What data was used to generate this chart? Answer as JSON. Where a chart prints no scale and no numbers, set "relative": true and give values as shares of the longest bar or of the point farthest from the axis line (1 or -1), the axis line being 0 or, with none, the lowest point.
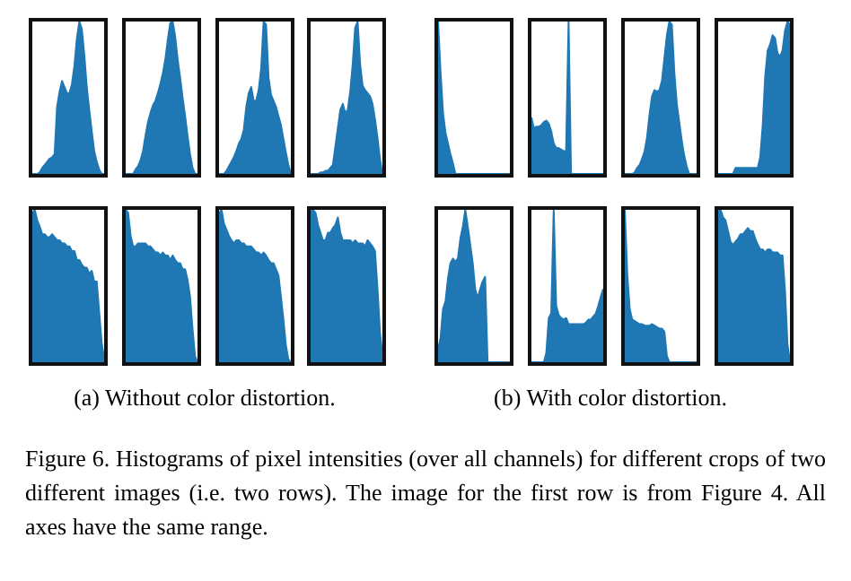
{
  "chart_data": [
    {
      "type": "area",
      "relative": true,
      "color": "#1f77b4",
      "categories": [
        null,
        null,
        null,
        null,
        null,
        null,
        null,
        null,
        null,
        null,
        null,
        null,
        null,
        null,
        null,
        null,
        null,
        null,
        null,
        null,
        null,
        null,
        null,
        null,
        null,
        null,
        null,
        null,
        null,
        null
      ],
      "values": [
        0,
        0,
        0,
        0.01,
        0.04,
        0.06,
        0.08,
        0.1,
        0.11,
        0.13,
        0.44,
        0.54,
        0.61,
        0.57,
        0.53,
        0.53,
        0.59,
        0.71,
        0.89,
        1,
        0.95,
        0.78,
        0.57,
        0.42,
        0.28,
        0.15,
        0.08,
        0.03,
        0,
        0
      ]
    },
    {
      "type": "area",
      "relative": true,
      "color": "#1f77b4",
      "categories": [
        null,
        null,
        null,
        null,
        null,
        null,
        null,
        null,
        null,
        null,
        null,
        null,
        null,
        null,
        null,
        null,
        null,
        null,
        null,
        null,
        null,
        null,
        null,
        null,
        null,
        null,
        null,
        null,
        null,
        null
      ],
      "values": [
        0,
        0,
        0,
        0,
        0.03,
        0.05,
        0.09,
        0.15,
        0.25,
        0.34,
        0.4,
        0.45,
        0.48,
        0.53,
        0.59,
        0.66,
        0.75,
        0.88,
        0.99,
        1,
        0.9,
        0.75,
        0.63,
        0.5,
        0.38,
        0.25,
        0.13,
        0.04,
        0,
        0
      ]
    },
    {
      "type": "area",
      "relative": true,
      "color": "#1f77b4",
      "categories": [
        null,
        null,
        null,
        null,
        null,
        null,
        null,
        null,
        null,
        null,
        null,
        null,
        null,
        null,
        null,
        null,
        null,
        null,
        null,
        null,
        null,
        null,
        null,
        null,
        null,
        null,
        null,
        null,
        null,
        null
      ],
      "values": [
        0,
        0,
        0,
        0.02,
        0.05,
        0.08,
        0.11,
        0.15,
        0.2,
        0.23,
        0.29,
        0.44,
        0.53,
        0.57,
        0.48,
        0.48,
        0.55,
        0.69,
        1,
        0.98,
        0.63,
        0.52,
        0.48,
        0.44,
        0.38,
        0.32,
        0.23,
        0.14,
        0.06,
        0
      ]
    },
    {
      "type": "area",
      "relative": true,
      "color": "#1f77b4",
      "categories": [
        null,
        null,
        null,
        null,
        null,
        null,
        null,
        null,
        null,
        null,
        null,
        null,
        null,
        null,
        null,
        null,
        null,
        null,
        null,
        null,
        null,
        null,
        null,
        null,
        null,
        null,
        null,
        null,
        null,
        null
      ],
      "values": [
        0,
        0,
        0,
        0,
        0.01,
        0.01,
        0.02,
        0.02,
        0.04,
        0.06,
        0.18,
        0.3,
        0.42,
        0.46,
        0.4,
        0.42,
        0.54,
        0.72,
        0.96,
        1,
        0.72,
        0.58,
        0.55,
        0.53,
        0.51,
        0.46,
        0.36,
        0.24,
        0.1,
        0
      ]
    },
    {
      "type": "area",
      "relative": true,
      "color": "#1f77b4",
      "categories": [
        null,
        null,
        null,
        null,
        null,
        null,
        null,
        null,
        null,
        null,
        null,
        null,
        null,
        null,
        null,
        null,
        null,
        null,
        null,
        null,
        null,
        null,
        null,
        null,
        null,
        null,
        null,
        null,
        null,
        null
      ],
      "values": [
        1,
        0.67,
        0.4,
        0.27,
        0.2,
        0.13,
        0.07,
        0,
        0,
        0,
        0,
        0,
        0,
        0,
        0,
        0,
        0,
        0,
        0,
        0,
        0,
        0,
        0,
        0,
        0,
        0,
        0,
        0,
        0,
        0
      ]
    },
    {
      "type": "area",
      "relative": true,
      "color": "#1f77b4",
      "categories": [
        null,
        null,
        null,
        null,
        null,
        null,
        null,
        null,
        null,
        null,
        null,
        null,
        null,
        null,
        null,
        null,
        null,
        null,
        null,
        null,
        null,
        null,
        null,
        null,
        null,
        null,
        null,
        null,
        null,
        null
      ],
      "values": [
        0.37,
        0.3,
        0.31,
        0.31,
        0.32,
        0.34,
        0.35,
        0.33,
        0.28,
        0.2,
        0.17,
        0.17,
        0.16,
        0.15,
        0.15,
        1,
        0,
        0,
        0,
        0,
        0,
        0,
        0,
        0,
        0,
        0,
        0,
        0,
        0,
        0
      ]
    },
    {
      "type": "area",
      "relative": true,
      "color": "#1f77b4",
      "categories": [
        null,
        null,
        null,
        null,
        null,
        null,
        null,
        null,
        null,
        null,
        null,
        null,
        null,
        null,
        null,
        null,
        null,
        null,
        null,
        null,
        null,
        null,
        null,
        null,
        null,
        null,
        null,
        null,
        null,
        null
      ],
      "values": [
        0,
        0,
        0,
        0,
        0.01,
        0.04,
        0.06,
        0.1,
        0.15,
        0.24,
        0.39,
        0.51,
        0.55,
        0.54,
        0.55,
        0.61,
        0.76,
        0.91,
        1,
        0.98,
        0.67,
        0.46,
        0.34,
        0.22,
        0.12,
        0.05,
        0,
        0,
        0,
        0
      ]
    },
    {
      "type": "area",
      "relative": true,
      "color": "#1f77b4",
      "categories": [
        null,
        null,
        null,
        null,
        null,
        null,
        null,
        null,
        null,
        null,
        null,
        null,
        null,
        null,
        null,
        null,
        null,
        null,
        null,
        null,
        null,
        null,
        null,
        null,
        null,
        null,
        null,
        null,
        null,
        null
      ],
      "values": [
        0,
        0,
        0,
        0,
        0,
        0,
        0,
        0.04,
        0.04,
        0.04,
        0.04,
        0.04,
        0.04,
        0.04,
        0.04,
        0.04,
        0.04,
        0.11,
        0.32,
        0.64,
        0.81,
        0.85,
        0.91,
        0.89,
        0.79,
        0.77,
        0.81,
        0.94,
        1,
        0.98
      ]
    },
    {
      "type": "area",
      "relative": true,
      "color": "#1f77b4",
      "categories": [
        null,
        null,
        null,
        null,
        null,
        null,
        null,
        null,
        null,
        null,
        null,
        null,
        null,
        null,
        null,
        null,
        null,
        null,
        null,
        null,
        null,
        null,
        null,
        null,
        null,
        null,
        null,
        null,
        null,
        null
      ],
      "values": [
        0.98,
        1,
        0.93,
        0.89,
        0.84,
        0.84,
        0.82,
        0.82,
        0.84,
        0.82,
        0.8,
        0.8,
        0.78,
        0.78,
        0.76,
        0.76,
        0.73,
        0.73,
        0.67,
        0.67,
        0.64,
        0.62,
        0.62,
        0.58,
        0.6,
        0.53,
        0.53,
        0.33,
        0.13,
        0.02
      ],
      "annotations": [
        "(a) Without color distortion.",
        "Figure 6. Histograms of pixel intensities (over all channels) for different crops of two different images (i.e. two rows). The image for the first row is from Figure 4. All axes have the same range."
      ]
    },
    {
      "type": "area",
      "relative": true,
      "color": "#1f77b4",
      "categories": [
        null,
        null,
        null,
        null,
        null,
        null,
        null,
        null,
        null,
        null,
        null,
        null,
        null,
        null,
        null,
        null,
        null,
        null,
        null,
        null,
        null,
        null,
        null,
        null,
        null,
        null,
        null,
        null,
        null,
        null
      ],
      "values": [
        1,
        0.98,
        0.83,
        0.76,
        0.76,
        0.78,
        0.78,
        0.78,
        0.78,
        0.76,
        0.76,
        0.74,
        0.72,
        0.72,
        0.7,
        0.72,
        0.7,
        0.7,
        0.67,
        0.7,
        0.67,
        0.65,
        0.65,
        0.61,
        0.61,
        0.54,
        0.43,
        0.22,
        0.04,
        0
      ]
    },
    {
      "type": "area",
      "relative": true,
      "color": "#1f77b4",
      "categories": [
        null,
        null,
        null,
        null,
        null,
        null,
        null,
        null,
        null,
        null,
        null,
        null,
        null,
        null,
        null,
        null,
        null,
        null,
        null,
        null,
        null,
        null,
        null,
        null,
        null,
        null,
        null,
        null,
        null,
        null
      ],
      "values": [
        0.98,
        1,
        0.91,
        0.87,
        0.83,
        0.8,
        0.78,
        0.8,
        0.8,
        0.78,
        0.78,
        0.76,
        0.76,
        0.76,
        0.74,
        0.72,
        0.72,
        0.7,
        0.72,
        0.7,
        0.67,
        0.65,
        0.65,
        0.61,
        0.57,
        0.43,
        0.28,
        0.11,
        0.02,
        0
      ]
    },
    {
      "type": "area",
      "relative": true,
      "color": "#1f77b4",
      "categories": [
        null,
        null,
        null,
        null,
        null,
        null,
        null,
        null,
        null,
        null,
        null,
        null,
        null,
        null,
        null,
        null,
        null,
        null,
        null,
        null,
        null,
        null,
        null,
        null,
        null,
        null,
        null,
        null,
        null,
        null
      ],
      "values": [
        1,
        1,
        0.98,
        0.9,
        0.85,
        0.8,
        0.8,
        0.85,
        0.85,
        0.88,
        0.9,
        0.95,
        0.85,
        0.8,
        0.8,
        0.8,
        0.8,
        0.78,
        0.8,
        0.78,
        0.78,
        0.78,
        0.76,
        0.8,
        0.78,
        0.76,
        0.73,
        0.49,
        0.2,
        0.05
      ]
    },
    {
      "type": "area",
      "relative": true,
      "color": "#1f77b4",
      "categories": [
        null,
        null,
        null,
        null,
        null,
        null,
        null,
        null,
        null,
        null,
        null,
        null,
        null,
        null,
        null,
        null,
        null,
        null,
        null,
        null,
        null,
        null,
        null,
        null,
        null,
        null,
        null,
        null,
        null,
        null
      ],
      "values": [
        0.08,
        0.16,
        0.35,
        0.4,
        0.55,
        0.65,
        0.68,
        0.66,
        0.68,
        0.81,
        0.89,
        1,
        0.89,
        0.77,
        0.65,
        0.48,
        0.42,
        0.48,
        0.53,
        0.56,
        0,
        0,
        0,
        0,
        0,
        0,
        0,
        0,
        0,
        0
      ],
      "annotations": [
        "(b) With color distortion."
      ]
    },
    {
      "type": "area",
      "relative": true,
      "color": "#1f77b4",
      "categories": [
        null,
        null,
        null,
        null,
        null,
        null,
        null,
        null,
        null,
        null,
        null,
        null,
        null,
        null,
        null,
        null,
        null,
        null,
        null,
        null,
        null,
        null,
        null,
        null,
        null,
        null,
        null,
        null,
        null,
        null
      ],
      "values": [
        0,
        0,
        0,
        0,
        0,
        0,
        0.06,
        0.29,
        0.32,
        1,
        0.37,
        0.31,
        0.29,
        0.28,
        0.29,
        0.25,
        0.25,
        0.25,
        0.25,
        0.25,
        0.25,
        0.25,
        0.26,
        0.28,
        0.28,
        0.3,
        0.32,
        0.37,
        0.43,
        0.48
      ]
    },
    {
      "type": "area",
      "relative": true,
      "color": "#1f77b4",
      "categories": [
        null,
        null,
        null,
        null,
        null,
        null,
        null,
        null,
        null,
        null,
        null,
        null,
        null,
        null,
        null,
        null,
        null,
        null,
        null,
        null,
        null,
        null,
        null,
        null,
        null,
        null,
        null,
        null,
        null,
        null
      ],
      "values": [
        1,
        0.58,
        0.35,
        0.28,
        0.27,
        0.26,
        0.25,
        0.25,
        0.24,
        0.24,
        0.24,
        0.25,
        0.24,
        0.23,
        0.22,
        0.22,
        0.2,
        0.04,
        0,
        0,
        0,
        0,
        0,
        0,
        0,
        0,
        0,
        0,
        0,
        0
      ]
    },
    {
      "type": "area",
      "relative": true,
      "color": "#1f77b4",
      "categories": [
        null,
        null,
        null,
        null,
        null,
        null,
        null,
        null,
        null,
        null,
        null,
        null,
        null,
        null,
        null,
        null,
        null,
        null,
        null,
        null,
        null,
        null,
        null,
        null,
        null,
        null,
        null,
        null,
        null,
        null
      ],
      "values": [
        1,
        1,
        0.95,
        0.93,
        0.86,
        0.79,
        0.77,
        0.79,
        0.81,
        0.84,
        0.84,
        0.86,
        0.88,
        0.86,
        0.86,
        0.81,
        0.77,
        0.74,
        0.74,
        0.72,
        0.74,
        0.74,
        0.72,
        0.72,
        0.72,
        0.7,
        0.7,
        0.47,
        0.12,
        0
      ]
    }
  ]
}
